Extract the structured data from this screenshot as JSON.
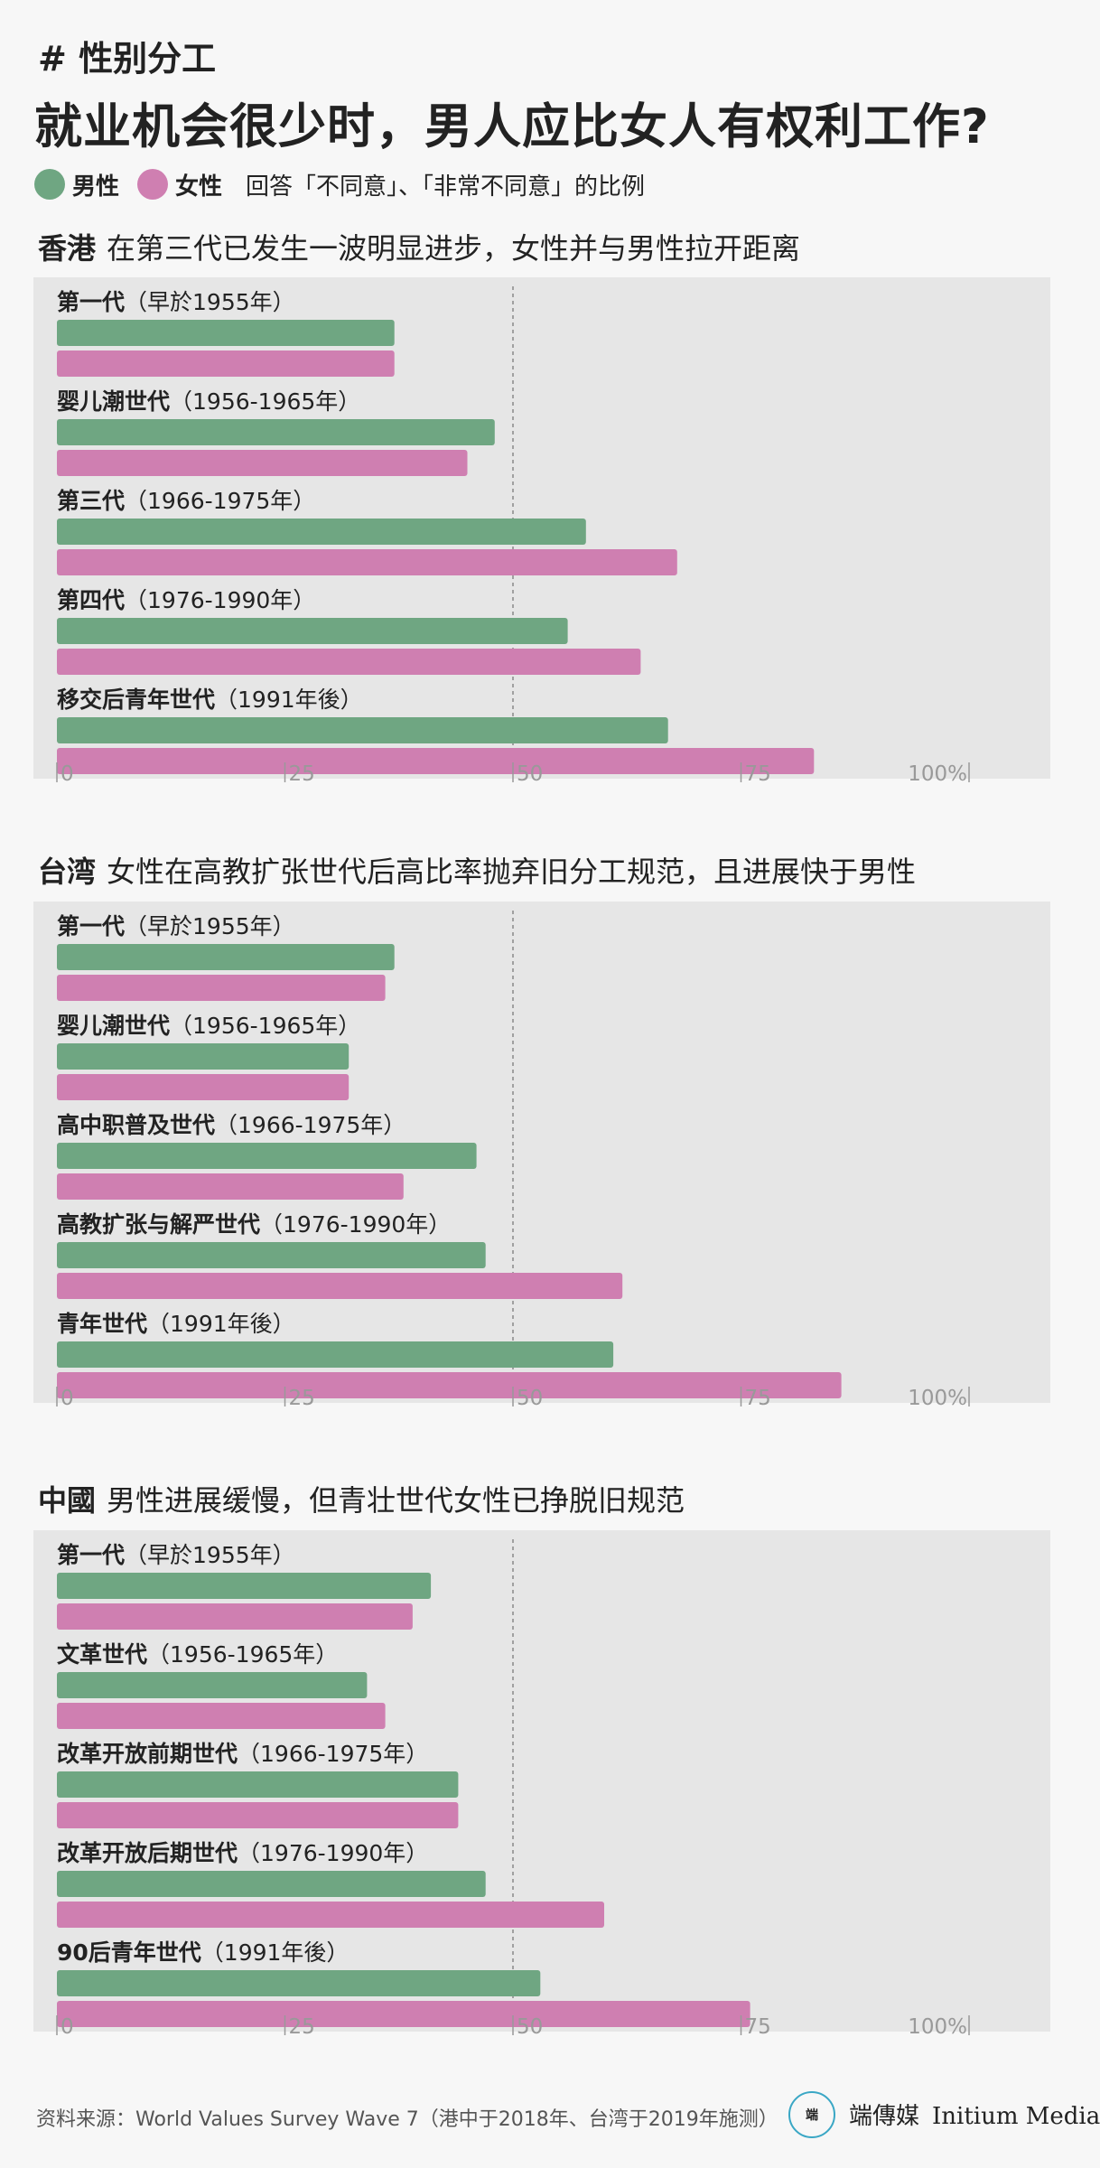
{
  "header": {
    "tag": "# 性别分工",
    "title": "就业机会很少时，男人应比女人有权利工作?"
  },
  "legend": {
    "male_label": "男性",
    "female_label": "女性",
    "note": "回答「不同意」、「非常不同意」的比例",
    "male_color": "#6fa682",
    "female_color": "#cf7fb1"
  },
  "source": "资料来源：World Values Survey Wave 7（港中于2018年、台湾于2019年施测）",
  "brand": {
    "logo_text": "端",
    "cn": "端傳媒",
    "en": "Initium Media"
  },
  "chart_data": [
    {
      "type": "bar",
      "region": "香港",
      "subtitle": "在第三代已发生一波明显进步，女性并与男性拉开距离",
      "categories": [
        {
          "name": "第一代",
          "years": "（早於1955年）"
        },
        {
          "name": "婴儿潮世代",
          "years": "（1956-1965年）"
        },
        {
          "name": "第三代",
          "years": "（1966-1975年）"
        },
        {
          "name": "第四代",
          "years": "（1976-1990年）"
        },
        {
          "name": "移交后青年世代",
          "years": "（1991年後）"
        }
      ],
      "series": [
        {
          "name": "男性",
          "values": [
            37,
            48,
            58,
            56,
            67
          ]
        },
        {
          "name": "女性",
          "values": [
            37,
            45,
            68,
            64,
            83
          ]
        }
      ],
      "xlim": [
        0,
        100
      ],
      "ticks": [
        "0",
        "25",
        "50",
        "75",
        "100%"
      ]
    },
    {
      "type": "bar",
      "region": "台湾",
      "subtitle": "女性在高教扩张世代后高比率抛弃旧分工规范，且进展快于男性",
      "categories": [
        {
          "name": "第一代",
          "years": "（早於1955年）"
        },
        {
          "name": "婴儿潮世代",
          "years": "（1956-1965年）"
        },
        {
          "name": "高中职普及世代",
          "years": "（1966-1975年）"
        },
        {
          "name": "高教扩张与解严世代",
          "years": "（1976-1990年）"
        },
        {
          "name": "青年世代",
          "years": "（1991年後）"
        }
      ],
      "series": [
        {
          "name": "男性",
          "values": [
            37,
            32,
            46,
            47,
            61
          ]
        },
        {
          "name": "女性",
          "values": [
            36,
            32,
            38,
            62,
            86
          ]
        }
      ],
      "xlim": [
        0,
        100
      ],
      "ticks": [
        "0",
        "25",
        "50",
        "75",
        "100%"
      ]
    },
    {
      "type": "bar",
      "region": "中國",
      "subtitle": "男性进展缓慢，但青壮世代女性已挣脱旧规范",
      "categories": [
        {
          "name": "第一代",
          "years": "（早於1955年）"
        },
        {
          "name": "文革世代",
          "years": "（1956-1965年）"
        },
        {
          "name": "改革开放前期世代",
          "years": "（1966-1975年）"
        },
        {
          "name": "改革开放后期世代",
          "years": "（1976-1990年）"
        },
        {
          "name": "90后青年世代",
          "years": "（1991年後）"
        }
      ],
      "series": [
        {
          "name": "男性",
          "values": [
            41,
            34,
            44,
            47,
            53
          ]
        },
        {
          "name": "女性",
          "values": [
            39,
            36,
            44,
            60,
            76
          ]
        }
      ],
      "xlim": [
        0,
        100
      ],
      "ticks": [
        "0",
        "25",
        "50",
        "75",
        "100%"
      ]
    }
  ]
}
